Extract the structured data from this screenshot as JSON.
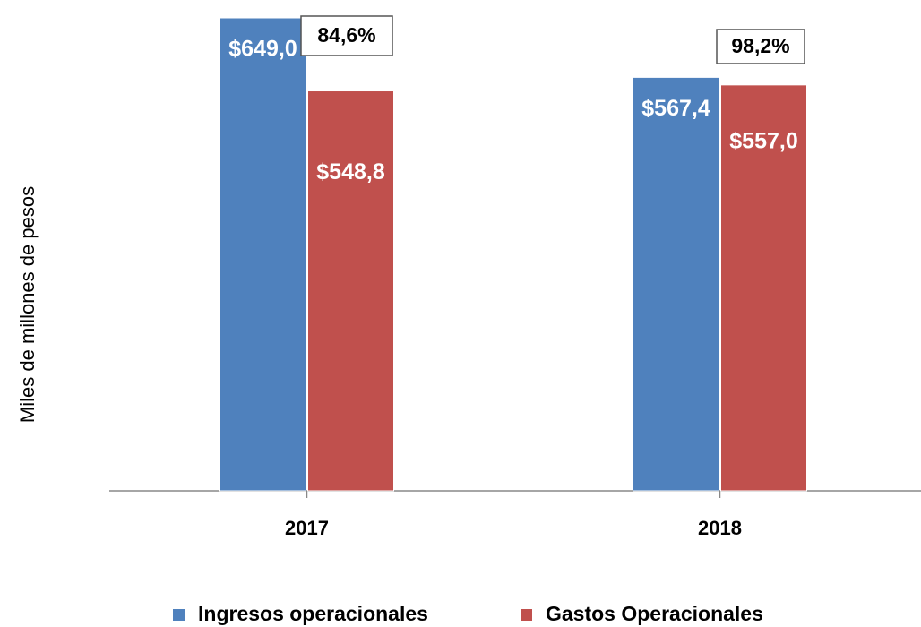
{
  "chart_data": {
    "type": "bar",
    "y_axis_label": "Miles de millones de pesos",
    "categories": [
      "2017",
      "2018"
    ],
    "series": [
      {
        "name": "Ingresos operacionales",
        "color": "#4f81bd",
        "values": [
          649.0,
          567.4
        ],
        "value_labels": [
          "$649,0",
          "$567,4"
        ]
      },
      {
        "name": "Gastos Operacionales",
        "color": "#c0504d",
        "values": [
          548.8,
          557.0
        ],
        "value_labels": [
          "$548,8",
          "$557,0"
        ]
      }
    ],
    "annotations": [
      "84,6%",
      "98,2%"
    ],
    "ylim": [
      0,
      649
    ],
    "legend": "bottom"
  }
}
